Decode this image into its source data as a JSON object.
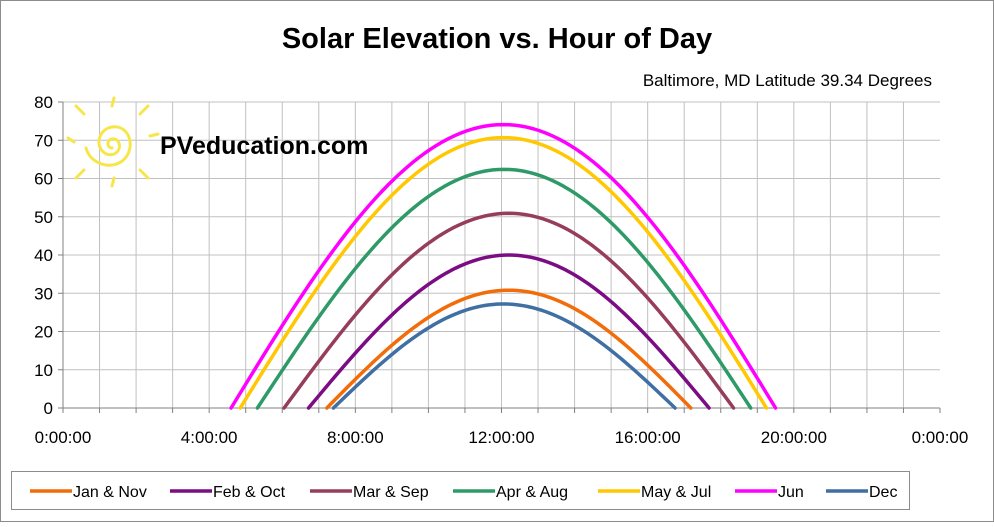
{
  "chart_data": {
    "type": "line",
    "title": "Solar Elevation vs. Hour of Day",
    "subtitle": "Baltimore, MD Latitude 39.34 Degrees",
    "watermark": "PVeducation.com",
    "xlabel": "",
    "ylabel": "",
    "xlim": [
      0,
      24
    ],
    "ylim": [
      0,
      80
    ],
    "x_ticks": [
      "0:00:00",
      "4:00:00",
      "8:00:00",
      "12:00:00",
      "16:00:00",
      "20:00:00",
      "0:00:00"
    ],
    "y_ticks": [
      "0",
      "10",
      "20",
      "30",
      "40",
      "50",
      "60",
      "70",
      "80"
    ],
    "grid": true,
    "legend_position": "bottom",
    "series": [
      {
        "name": "Jan & Nov",
        "color": "#F36C0A",
        "sunrise_hour": 7.22,
        "sunset_hour": 17.18,
        "peak_hour": 12.2,
        "max_elevation": 30.8
      },
      {
        "name": "Feb & Oct",
        "color": "#7B0C84",
        "sunrise_hour": 6.72,
        "sunset_hour": 17.68,
        "peak_hour": 12.2,
        "max_elevation": 40.0
      },
      {
        "name": "Mar & Sep",
        "color": "#963D5E",
        "sunrise_hour": 6.05,
        "sunset_hour": 18.35,
        "peak_hour": 12.2,
        "max_elevation": 50.9
      },
      {
        "name": "Apr & Aug",
        "color": "#2E9A68",
        "sunrise_hour": 5.32,
        "sunset_hour": 18.82,
        "peak_hour": 12.07,
        "max_elevation": 62.4
      },
      {
        "name": "May & Jul",
        "color": "#FFC800",
        "sunrise_hour": 4.85,
        "sunset_hour": 19.25,
        "peak_hour": 12.05,
        "max_elevation": 70.7
      },
      {
        "name": "Jun",
        "color": "#FF00FF",
        "sunrise_hour": 4.6,
        "sunset_hour": 19.5,
        "peak_hour": 12.05,
        "max_elevation": 74.1
      },
      {
        "name": "Dec",
        "color": "#3F6FA3",
        "sunrise_hour": 7.4,
        "sunset_hour": 16.75,
        "peak_hour": 12.05,
        "max_elevation": 27.2
      }
    ]
  }
}
